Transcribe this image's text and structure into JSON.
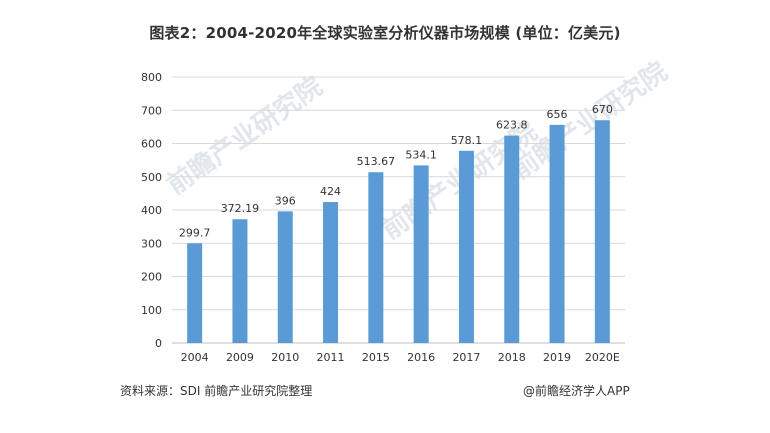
{
  "title": "图表2：2004-2020年全球实验室分析仪器市场规模 (单位：亿美元)",
  "source": "资料来源：SDI 前瞻产业研究院整理",
  "credit": "@前瞻经济学人APP",
  "watermark_text": "前瞻产业研究院",
  "colors": {
    "bar": "#5b9bd5",
    "grid": "#d9d9d9",
    "text": "#333333"
  },
  "chart_data": {
    "type": "bar",
    "title": "图表2：2004-2020年全球实验室分析仪器市场规模 (单位：亿美元)",
    "xlabel": "",
    "ylabel": "",
    "categories": [
      "2004",
      "2009",
      "2010",
      "2011",
      "2015",
      "2016",
      "2017",
      "2018",
      "2019",
      "2020E"
    ],
    "values": [
      299.7,
      372.19,
      396,
      424,
      513.67,
      534.1,
      578.1,
      623.8,
      656,
      670
    ],
    "value_labels": [
      "299.7",
      "372.19",
      "396",
      "424",
      "513.67",
      "534.1",
      "578.1",
      "623.8",
      "656",
      "670"
    ],
    "ylim": [
      0,
      800
    ],
    "yticks": [
      0,
      100,
      200,
      300,
      400,
      500,
      600,
      700,
      800
    ],
    "grid": true,
    "legend": "none"
  }
}
